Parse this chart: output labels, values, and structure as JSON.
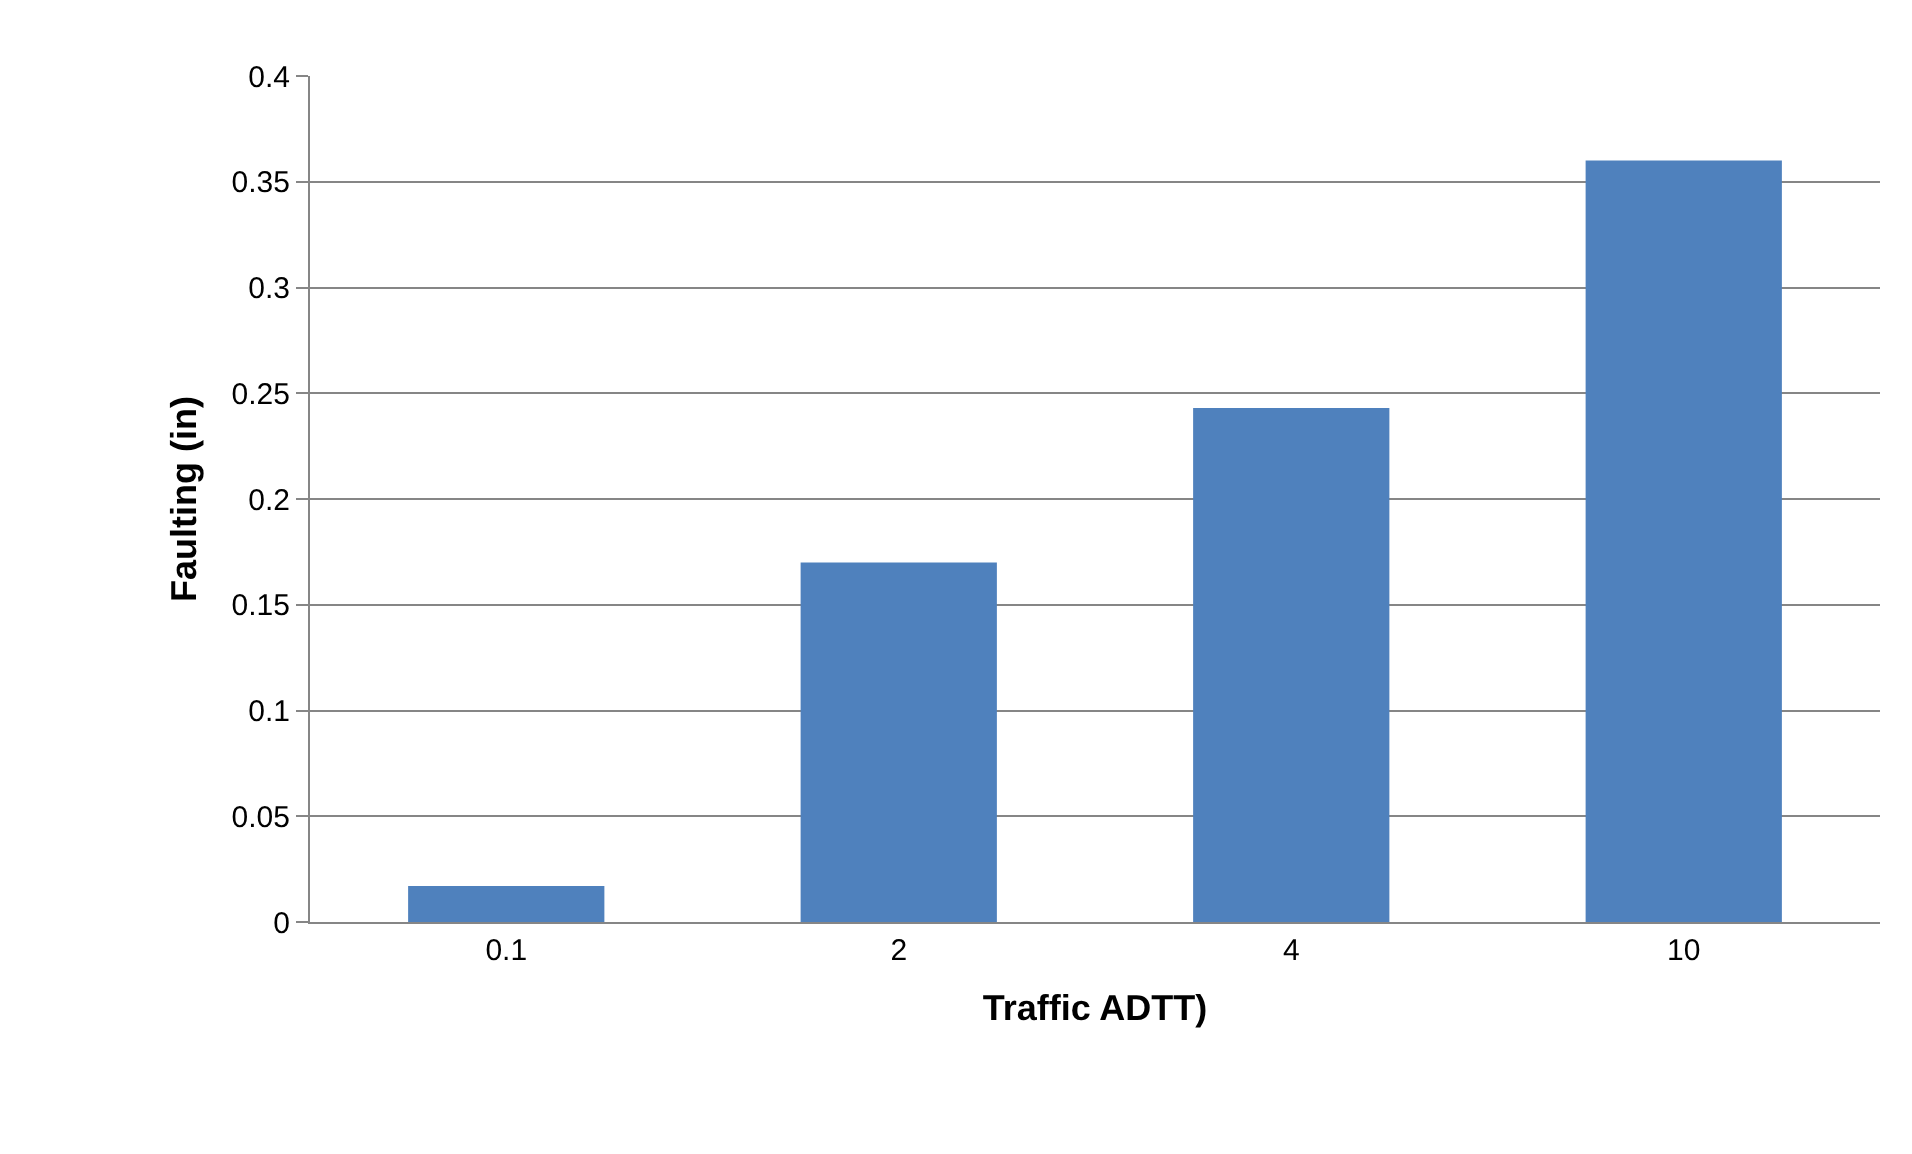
{
  "chart_data": {
    "type": "bar",
    "xlabel": "Traffic ADTT)",
    "ylabel": "Faulting (in)",
    "categories": [
      "0.1",
      "2",
      "4",
      "10"
    ],
    "values": [
      0.017,
      0.17,
      0.243,
      0.36
    ],
    "color": "#4f81bd",
    "ylim": [
      0,
      0.4
    ],
    "yticks": [
      0,
      0.05,
      0.1,
      0.15,
      0.2,
      0.25,
      0.3,
      0.35,
      0.4
    ],
    "grid": "y"
  }
}
